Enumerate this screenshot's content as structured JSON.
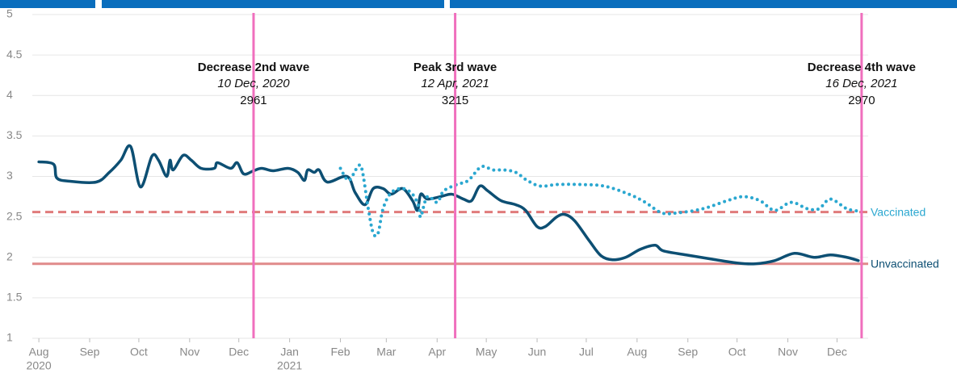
{
  "chart_data": {
    "type": "line",
    "xlim": [
      "2020-07-28",
      "2021-12-20"
    ],
    "ylim": [
      1,
      5
    ],
    "yticks": [
      1,
      1.5,
      2,
      2.5,
      3,
      3.5,
      4,
      4.5,
      5
    ],
    "grid": true,
    "xticks": [
      {
        "value": "2020-08-01",
        "label": "Aug",
        "sublabel": "2020"
      },
      {
        "value": "2020-09-01",
        "label": "Sep"
      },
      {
        "value": "2020-10-01",
        "label": "Oct"
      },
      {
        "value": "2020-11-01",
        "label": "Nov"
      },
      {
        "value": "2020-12-01",
        "label": "Dec"
      },
      {
        "value": "2021-01-01",
        "label": "Jan",
        "sublabel": "2021"
      },
      {
        "value": "2021-02-01",
        "label": "Feb"
      },
      {
        "value": "2021-03-01",
        "label": "Mar"
      },
      {
        "value": "2021-04-01",
        "label": "Apr"
      },
      {
        "value": "2021-05-01",
        "label": "May"
      },
      {
        "value": "2021-06-01",
        "label": "Jun"
      },
      {
        "value": "2021-07-01",
        "label": "Jul"
      },
      {
        "value": "2021-08-01",
        "label": "Aug"
      },
      {
        "value": "2021-09-01",
        "label": "Sep"
      },
      {
        "value": "2021-10-01",
        "label": "Oct"
      },
      {
        "value": "2021-11-01",
        "label": "Nov"
      },
      {
        "value": "2021-12-01",
        "label": "Dec"
      }
    ],
    "reference_lines": [
      {
        "name": "Vaccinated",
        "value": 2.56,
        "style": "dashed",
        "color": "#e07b7b",
        "label_color": "#2aa7d0"
      },
      {
        "name": "Unvaccinated",
        "value": 1.92,
        "style": "solid",
        "color": "#e08a8a",
        "label_color": "#0d4f73"
      }
    ],
    "annotations": [
      {
        "x": "2020-12-10",
        "title": "Decrease 2nd wave",
        "date": "10 Dec, 2020",
        "value": 2961
      },
      {
        "x": "2021-04-12",
        "title": "Peak 3rd wave",
        "date": "12 Apr, 2021",
        "value": 3215
      },
      {
        "x": "2021-12-16",
        "title": "Decrease 4th wave",
        "date": "16 Dec, 2021",
        "value": 2970
      }
    ],
    "annotation_color": "#f06fbd",
    "series": [
      {
        "color": "#0d4f73",
        "style": "solid",
        "x": [
          "2020-08-01",
          "2020-08-10",
          "2020-08-12",
          "2020-08-20",
          "2020-09-05",
          "2020-09-13",
          "2020-09-20",
          "2020-09-26",
          "2020-10-02",
          "2020-10-09",
          "2020-10-13",
          "2020-10-18",
          "2020-10-20",
          "2020-10-22",
          "2020-10-28",
          "2020-11-02",
          "2020-11-08",
          "2020-11-16",
          "2020-11-18",
          "2020-11-26",
          "2020-11-30",
          "2020-12-04",
          "2020-12-10",
          "2020-12-15",
          "2020-12-22",
          "2020-12-31",
          "2021-01-06",
          "2021-01-10",
          "2021-01-12",
          "2021-01-16",
          "2021-01-19",
          "2021-01-24",
          "2021-02-05",
          "2021-02-10",
          "2021-02-16",
          "2021-02-21",
          "2021-02-27",
          "2021-03-04",
          "2021-03-11",
          "2021-03-17",
          "2021-03-20",
          "2021-03-22",
          "2021-03-26",
          "2021-04-03",
          "2021-04-10",
          "2021-04-17",
          "2021-04-22",
          "2021-04-27",
          "2021-05-02",
          "2021-05-10",
          "2021-05-19",
          "2021-05-25",
          "2021-06-01",
          "2021-06-06",
          "2021-06-13",
          "2021-06-18",
          "2021-06-24",
          "2021-07-03",
          "2021-07-10",
          "2021-07-17",
          "2021-07-25",
          "2021-08-03",
          "2021-08-12",
          "2021-08-17",
          "2021-08-31",
          "2021-09-15",
          "2021-10-01",
          "2021-10-12",
          "2021-10-24",
          "2021-11-05",
          "2021-11-17",
          "2021-11-27",
          "2021-12-07",
          "2021-12-14"
        ],
        "values": [
          3.18,
          3.15,
          2.98,
          2.94,
          2.93,
          3.05,
          3.2,
          3.37,
          2.87,
          3.25,
          3.2,
          3.0,
          3.2,
          3.08,
          3.26,
          3.2,
          3.1,
          3.1,
          3.17,
          3.1,
          3.17,
          3.03,
          3.07,
          3.1,
          3.07,
          3.1,
          3.05,
          2.95,
          3.08,
          3.05,
          3.08,
          2.93,
          3.0,
          2.8,
          2.65,
          2.85,
          2.85,
          2.78,
          2.85,
          2.7,
          2.58,
          2.78,
          2.72,
          2.75,
          2.78,
          2.72,
          2.7,
          2.88,
          2.82,
          2.7,
          2.65,
          2.58,
          2.38,
          2.38,
          2.5,
          2.53,
          2.45,
          2.2,
          2.02,
          1.97,
          2.0,
          2.1,
          2.15,
          2.08,
          2.03,
          1.98,
          1.93,
          1.92,
          1.96,
          2.05,
          2.0,
          2.03,
          2.0,
          1.96
        ]
      },
      {
        "color": "#2aa7d0",
        "style": "dotted",
        "x": [
          "2021-02-01",
          "2021-02-06",
          "2021-02-11",
          "2021-02-14",
          "2021-02-18",
          "2021-02-21",
          "2021-02-24",
          "2021-02-27",
          "2021-03-04",
          "2021-03-11",
          "2021-03-17",
          "2021-03-21",
          "2021-03-22",
          "2021-03-26",
          "2021-04-01",
          "2021-04-05",
          "2021-04-13",
          "2021-04-20",
          "2021-04-28",
          "2021-05-05",
          "2021-05-12",
          "2021-05-19",
          "2021-05-26",
          "2021-06-03",
          "2021-06-13",
          "2021-06-27",
          "2021-07-12",
          "2021-07-27",
          "2021-08-06",
          "2021-08-16",
          "2021-08-26",
          "2021-09-10",
          "2021-09-25",
          "2021-10-05",
          "2021-10-15",
          "2021-10-24",
          "2021-11-03",
          "2021-11-13",
          "2021-11-20",
          "2021-11-27",
          "2021-12-07",
          "2021-12-15"
        ],
        "values": [
          3.1,
          2.95,
          3.1,
          3.1,
          2.6,
          2.3,
          2.3,
          2.6,
          2.8,
          2.85,
          2.78,
          2.62,
          2.5,
          2.75,
          2.68,
          2.82,
          2.9,
          2.95,
          3.12,
          3.08,
          3.08,
          3.05,
          2.95,
          2.88,
          2.9,
          2.9,
          2.88,
          2.78,
          2.68,
          2.55,
          2.55,
          2.6,
          2.7,
          2.75,
          2.7,
          2.58,
          2.68,
          2.6,
          2.6,
          2.72,
          2.6,
          2.57
        ]
      }
    ]
  }
}
